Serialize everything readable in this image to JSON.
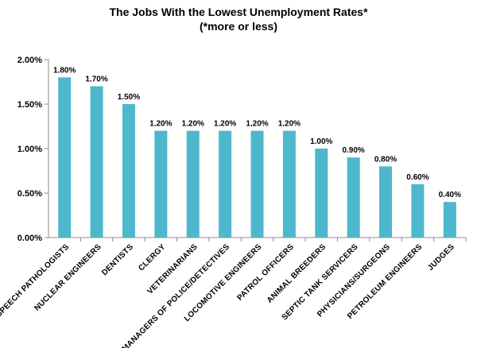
{
  "chart_data": {
    "type": "bar",
    "title": "The Jobs With the Lowest Unemployment Rates*",
    "subtitle": "(*more or less)",
    "xlabel": "",
    "ylabel": "",
    "ylim": [
      0,
      2.0
    ],
    "yticks": [
      0,
      0.5,
      1.0,
      1.5,
      2.0
    ],
    "ytick_labels": [
      "0.00%",
      "0.50%",
      "1.00%",
      "1.50%",
      "2.00%"
    ],
    "grid": false,
    "legend": "none",
    "bar_color": "#4db8cc",
    "categories": [
      "SPEECH PATHOLOGISTS",
      "NUCLEAR ENGINEERS",
      "DENTISTS",
      "CLERGY",
      "VETERINARIANS",
      "MANAGERS OF POLICE/DETECTIVES",
      "LOCOMOTIVE ENGINEERS",
      "PATROL OFFICERS",
      "ANIMAL BREEDERS",
      "SEPTIC TANK SERVICERS",
      "PHYSICIANS/SURGEONS",
      "PETROLEUM ENGINEERS",
      "JUDGES"
    ],
    "values": [
      1.8,
      1.7,
      1.5,
      1.2,
      1.2,
      1.2,
      1.2,
      1.2,
      1.0,
      0.9,
      0.8,
      0.6,
      0.4
    ],
    "data_labels": [
      "1.80%",
      "1.70%",
      "1.50%",
      "1.20%",
      "1.20%",
      "1.20%",
      "1.20%",
      "1.20%",
      "1.00%",
      "0.90%",
      "0.80%",
      "0.60%",
      "0.40%"
    ]
  }
}
